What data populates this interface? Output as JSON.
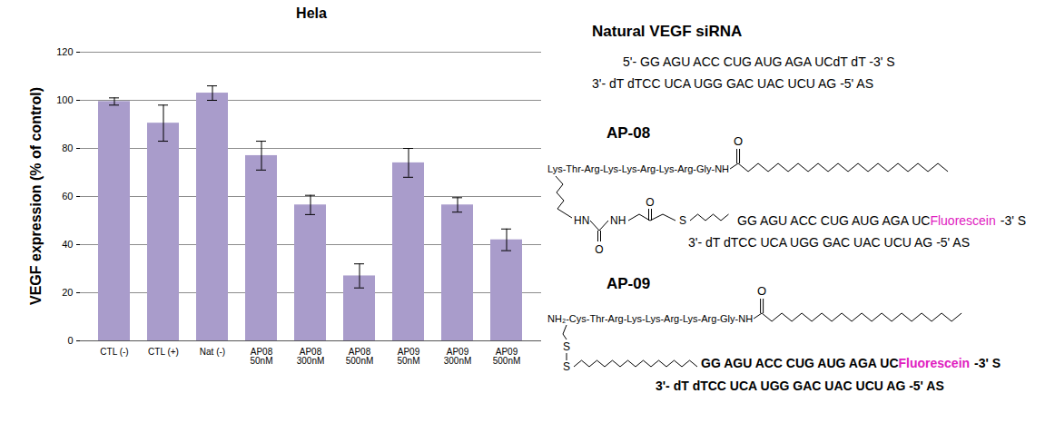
{
  "chart_data": {
    "type": "bar",
    "title": "Hela",
    "y_label": "VEGF expression (% of control)",
    "categories": [
      "CTL (-)",
      "CTL (+)",
      "Nat (-)",
      "AP08\n50nM",
      "AP08\n300nM",
      "AP08\n500nM",
      "AP09\n50nM",
      "AP09\n300nM",
      "AP09\n500nM"
    ],
    "values": [
      99.5,
      90.5,
      103,
      77,
      56.5,
      27,
      74,
      56.5,
      42
    ],
    "errors": [
      1.5,
      7.5,
      3,
      6,
      4,
      5,
      6,
      3,
      4.5
    ],
    "color": "#a99ccb",
    "ylim": [
      0,
      120
    ],
    "yticks": [
      0,
      20,
      40,
      60,
      80,
      100,
      120
    ],
    "grid": true
  },
  "structures": {
    "heading": "Natural VEGF siRNA",
    "natural": {
      "sense": "5'- GG AGU ACC CUG AUG AGA UCdT dT -3' S",
      "antisense": "3'- dT dTCC UCA UGG GAC UAC UCU AG -5' AS"
    },
    "conjugates": [
      {
        "name": "AP-08",
        "peptide": "Lys-Thr-Arg-Lys-Lys-Arg-Lys-Arg-Gly-NH",
        "carbonyl": "O",
        "linker": [
          "HN",
          "NH",
          "O",
          "O",
          "S"
        ],
        "sense": "GG AGU ACC CUG AUG AGA UC",
        "fluorophore": "Fluorescein",
        "sense_end": "-3' S",
        "antisense": "3'- dT dTCC UCA UGG GAC UAC UCU AG -5' AS"
      },
      {
        "name": "AP-09",
        "peptide": "NH₂-Cys-Thr-Arg-Lys-Lys-Arg-Lys-Arg-Gly-NH",
        "carbonyl": "O",
        "linker": [
          "S",
          "S"
        ],
        "sense": "GG AGU ACC CUG AUG AGA UC",
        "fluorophore": "Fluorescein",
        "sense_end": "-3' S",
        "antisense": "3'- dT dTCC UCA UGG GAC UAC UCU AG -5' AS"
      }
    ]
  }
}
